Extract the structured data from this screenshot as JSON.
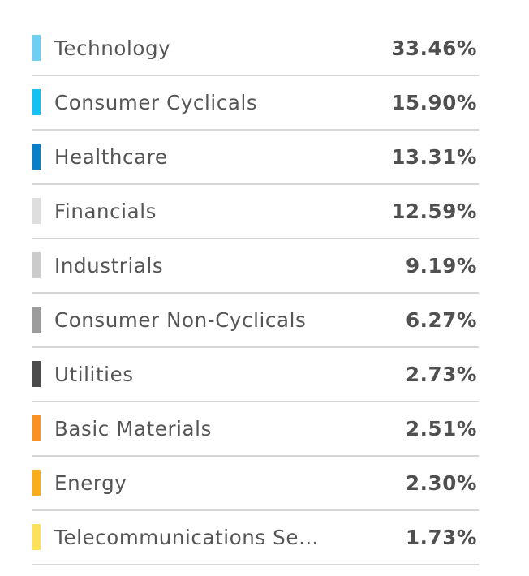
{
  "sectors": [
    {
      "name": "Technology",
      "value": "33.46%",
      "color": "#6ecff5"
    },
    {
      "name": "Consumer Cyclicals",
      "value": "15.90%",
      "color": "#16c1f2"
    },
    {
      "name": "Healthcare",
      "value": "13.31%",
      "color": "#0a7fc8"
    },
    {
      "name": "Financials",
      "value": "12.59%",
      "color": "#dedede"
    },
    {
      "name": "Industrials",
      "value": "9.19%",
      "color": "#cbcbcb"
    },
    {
      "name": "Consumer Non-Cyclicals",
      "value": "6.27%",
      "color": "#9c9c9c"
    },
    {
      "name": "Utilities",
      "value": "2.73%",
      "color": "#4c4c4c"
    },
    {
      "name": "Basic Materials",
      "value": "2.51%",
      "color": "#f79226"
    },
    {
      "name": "Energy",
      "value": "2.30%",
      "color": "#fbac1e"
    },
    {
      "name": "Telecommunications Se…",
      "value": "1.73%",
      "color": "#fde15a"
    }
  ]
}
